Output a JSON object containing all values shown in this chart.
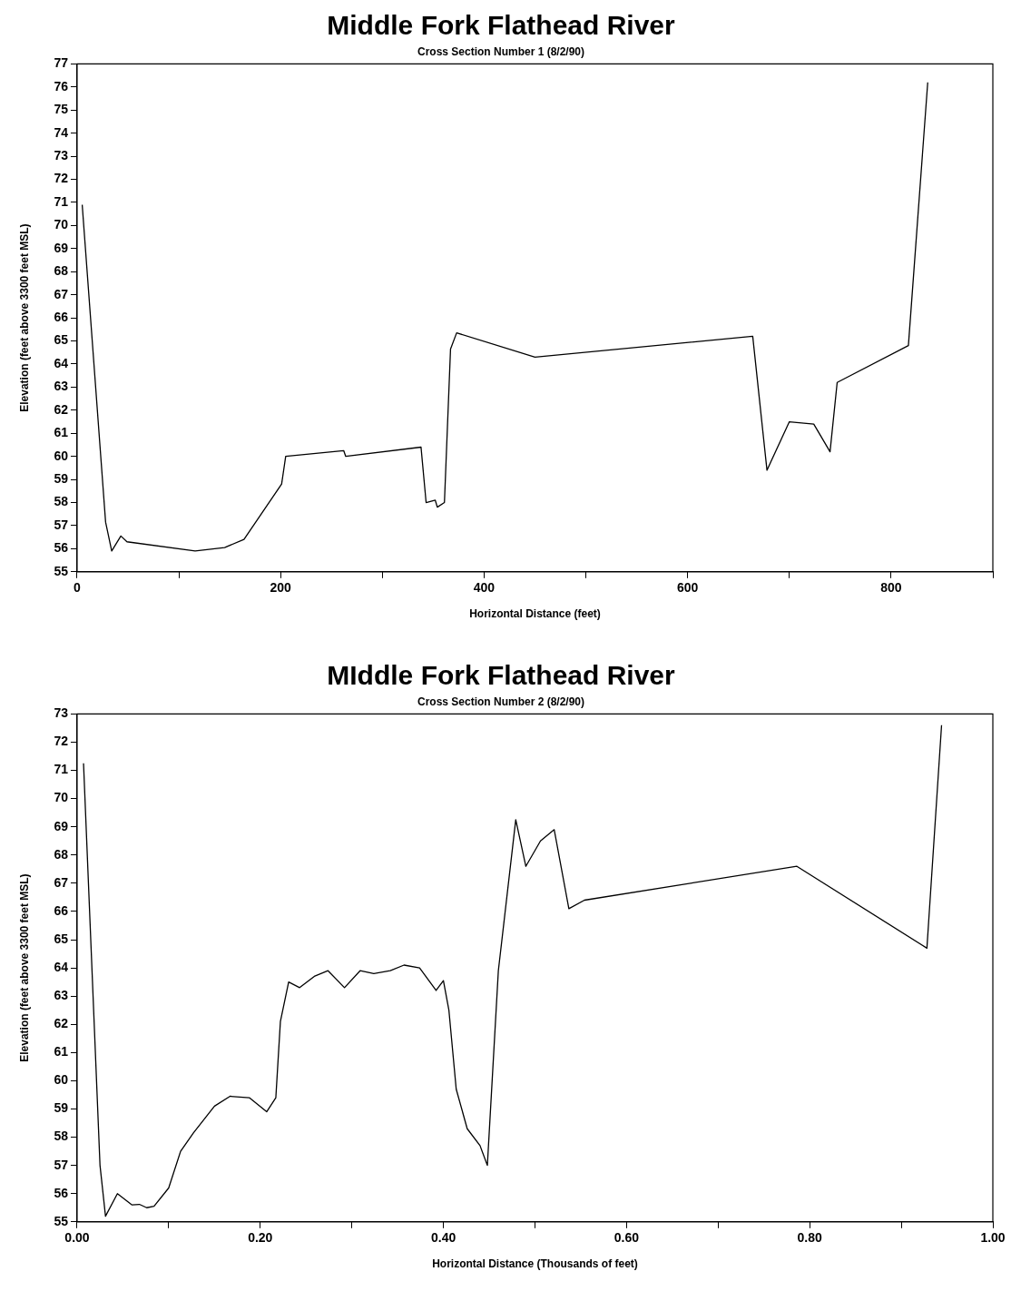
{
  "chart_data": [
    {
      "type": "line",
      "title": "Middle Fork Flathead River",
      "subtitle": "Cross Section Number 1 (8/2/90)",
      "xlabel": "Horizontal Distance (feet)",
      "ylabel": "Elevation (feet above 3300 feet MSL)",
      "marker": "none",
      "x": [
        5,
        28,
        34,
        43,
        49,
        116,
        145,
        164,
        201,
        205,
        262,
        264,
        338,
        343,
        352,
        354,
        361,
        367,
        373,
        450,
        664,
        678,
        700,
        724,
        740,
        747,
        817,
        836
      ],
      "series": [
        {
          "color": "#000000",
          "values": [
            70.9,
            57.15,
            55.9,
            56.55,
            56.3,
            55.9,
            56.05,
            56.4,
            58.8,
            60.0,
            60.25,
            60.0,
            60.4,
            58.0,
            58.1,
            57.8,
            58.0,
            64.65,
            65.35,
            64.3,
            65.2,
            59.4,
            61.5,
            61.4,
            60.2,
            63.2,
            64.8,
            76.2
          ]
        }
      ],
      "xlim": [
        0,
        900
      ],
      "xticks": [
        0,
        {
          "value": 100,
          "label": null
        },
        200,
        {
          "value": 300,
          "label": null
        },
        400,
        {
          "value": 500,
          "label": null
        },
        600,
        {
          "value": 700,
          "label": null
        },
        800,
        {
          "value": 900,
          "label": null
        }
      ],
      "ylim": [
        55,
        77
      ],
      "yticks": [
        55,
        56,
        57,
        58,
        59,
        60,
        61,
        62,
        63,
        64,
        65,
        66,
        67,
        68,
        69,
        70,
        71,
        72,
        73,
        74,
        75,
        76,
        77
      ]
    },
    {
      "type": "line",
      "title": "MIddle Fork Flathead River",
      "subtitle": "Cross Section Number 2 (8/2/90)",
      "xlabel": "Horizontal Distance (Thousands of feet)",
      "ylabel": "Elevation (feet above 3300 feet MSL)",
      "marker": "none",
      "x": [
        0.007,
        0.025,
        0.031,
        0.044,
        0.06,
        0.068,
        0.076,
        0.084,
        0.1,
        0.113,
        0.127,
        0.15,
        0.167,
        0.188,
        0.207,
        0.217,
        0.222,
        0.231,
        0.243,
        0.259,
        0.274,
        0.292,
        0.309,
        0.324,
        0.342,
        0.357,
        0.374,
        0.392,
        0.4,
        0.406,
        0.414,
        0.426,
        0.44,
        0.448,
        0.46,
        0.479,
        0.49,
        0.506,
        0.521,
        0.537,
        0.554,
        0.786,
        0.928,
        0.944
      ],
      "series": [
        {
          "color": "#000000",
          "values": [
            71.25,
            57.0,
            55.2,
            56.0,
            55.6,
            55.62,
            55.5,
            55.55,
            56.2,
            57.5,
            58.15,
            59.1,
            59.45,
            59.4,
            58.9,
            59.4,
            62.1,
            63.5,
            63.3,
            63.7,
            63.9,
            63.3,
            63.9,
            63.8,
            63.9,
            64.1,
            64.0,
            63.2,
            63.55,
            62.5,
            59.7,
            58.3,
            57.7,
            57.0,
            63.9,
            69.25,
            67.6,
            68.5,
            68.9,
            66.1,
            66.4,
            67.6,
            64.7,
            72.6
          ]
        }
      ],
      "xlim": [
        0,
        1
      ],
      "xticks": [
        {
          "value": 0,
          "label": "0.00"
        },
        {
          "value": 0.1,
          "label": null
        },
        {
          "value": 0.2,
          "label": "0.20"
        },
        {
          "value": 0.3,
          "label": null
        },
        {
          "value": 0.4,
          "label": "0.40"
        },
        {
          "value": 0.5,
          "label": null
        },
        {
          "value": 0.6,
          "label": "0.60"
        },
        {
          "value": 0.7,
          "label": null
        },
        {
          "value": 0.8,
          "label": "0.80"
        },
        {
          "value": 0.9,
          "label": null
        },
        {
          "value": 1,
          "label": "1.00"
        }
      ],
      "ylim": [
        55,
        73
      ],
      "yticks": [
        55,
        56,
        57,
        58,
        59,
        60,
        61,
        62,
        63,
        64,
        65,
        66,
        67,
        68,
        69,
        70,
        71,
        72,
        73
      ]
    }
  ]
}
